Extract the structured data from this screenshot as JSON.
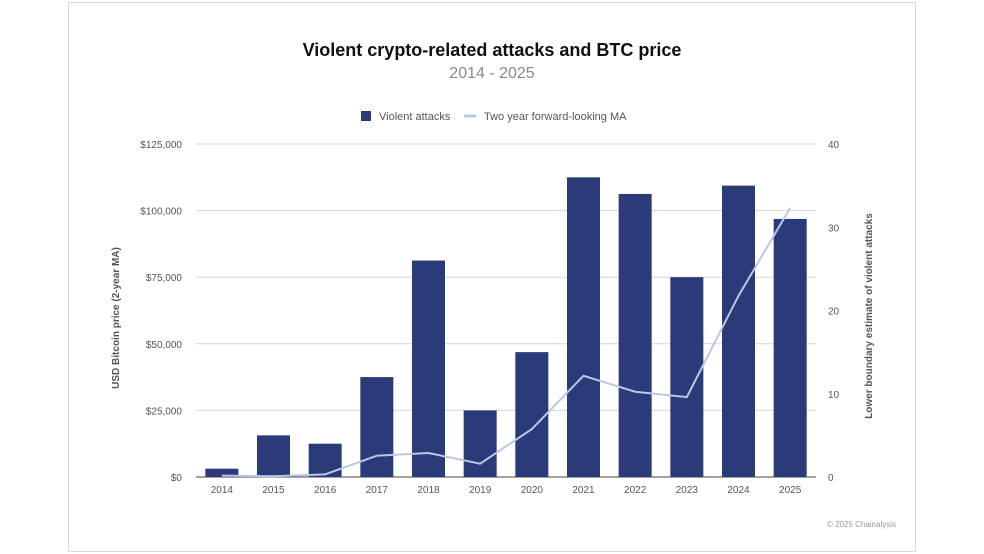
{
  "chart_data": {
    "type": "bar+line",
    "title": "Violent crypto-related attacks and BTC price",
    "subtitle": "2014 - 2025",
    "categories": [
      "2014",
      "2015",
      "2016",
      "2017",
      "2018",
      "2019",
      "2020",
      "2021",
      "2022",
      "2023",
      "2024",
      "2025"
    ],
    "series": [
      {
        "name": "Violent attacks",
        "type": "bar",
        "axis": "right",
        "color": "#2b3a78",
        "values": [
          1,
          5,
          4,
          12,
          26,
          8,
          15,
          36,
          34,
          24,
          35,
          31
        ]
      },
      {
        "name": "Two year forward-looking MA",
        "type": "line",
        "axis": "left",
        "color": "#b9c8e6",
        "values": [
          500,
          300,
          1000,
          8000,
          9000,
          5000,
          18000,
          38000,
          32000,
          30000,
          68000,
          101000
        ]
      }
    ],
    "left_axis": {
      "label": "USD Bitcoin price (2-year MA)",
      "ylim": [
        0,
        125000
      ],
      "ticks": [
        0,
        25000,
        50000,
        75000,
        100000,
        125000
      ],
      "tick_labels": [
        "$0",
        "$25,000",
        "$50,000",
        "$75,000",
        "$100,000",
        "$125,000"
      ]
    },
    "right_axis": {
      "label": "Lower boundary estimate of violent attacks",
      "ylim": [
        0,
        40
      ],
      "ticks": [
        0,
        10,
        20,
        30,
        40
      ],
      "tick_labels": [
        "0",
        "10",
        "20",
        "30",
        "40"
      ]
    },
    "legend": {
      "position": "top-center",
      "items": [
        "Violent attacks",
        "Two year forward-looking MA"
      ]
    },
    "grid": true
  },
  "footer": "© 2025 Chainalysis"
}
